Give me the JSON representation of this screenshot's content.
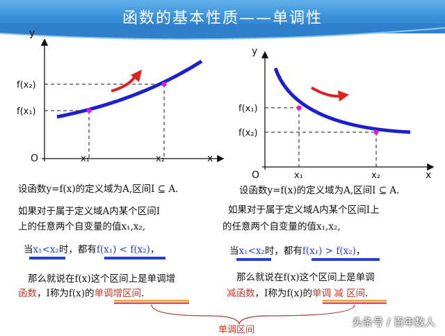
{
  "header": {
    "title": "函数的基本性质——单调性"
  },
  "graph_left": {
    "axis_y": "y",
    "axis_x": "x",
    "origin": "O",
    "f_x2": "f(x₂)",
    "f_x1": "f(x₁)",
    "x1": "x₁",
    "x2": "x₂"
  },
  "graph_right": {
    "axis_y": "y",
    "axis_x": "x",
    "origin": "O",
    "f_x1": "f(x₁)",
    "f_x2": "f(x₂)",
    "x1": "x₁",
    "x2": "x₂"
  },
  "left_text": {
    "line1": "设函数y=f(x)的定义域为A,区间I ⊆ A.",
    "line2": "如果对于属于定义域A内某个区间I",
    "line3": "上的任意两个自变量的值x₁,x₂,",
    "cond_prefix": "当",
    "cond_ineq": "x₁<x₂",
    "cond_mid": "时，都有",
    "cond_result": "f(x₁) < f(x₂)",
    "cond_suffix": "，",
    "concl1": "那么就说在f(x)这个区间上是单调增",
    "concl2_red": "函数",
    "concl2_mid": "，I称为f(x)的",
    "concl2_red2": "单调增区间",
    "concl2_end": "."
  },
  "right_text": {
    "line1": "设函数y=f(x)的定义域为A,区间I ⊆ A.",
    "line2": "如果对于属于定义域A内某个区间I上",
    "line3": "的任意两个自变量的值x₁,x₂,",
    "cond_prefix": "当",
    "cond_ineq": "x₁<x₂",
    "cond_mid": "时，都有",
    "cond_result": "f(x₁) > f(x₂)",
    "cond_suffix": "，",
    "concl1": "那么就说在f(x)这个区间上是单调",
    "concl2_red": "减函数",
    "concl2_mid": "，I称为f(x)的",
    "concl2_red2": "单调 减 区间",
    "concl2_end": "."
  },
  "bracket_label": "单调区间",
  "watermark": "头条号 / 百年数人",
  "colors": {
    "curve": "#1a1fd1",
    "arrow": "#e02020",
    "point": "#e01ad8",
    "banner": "#3a8fd8"
  }
}
